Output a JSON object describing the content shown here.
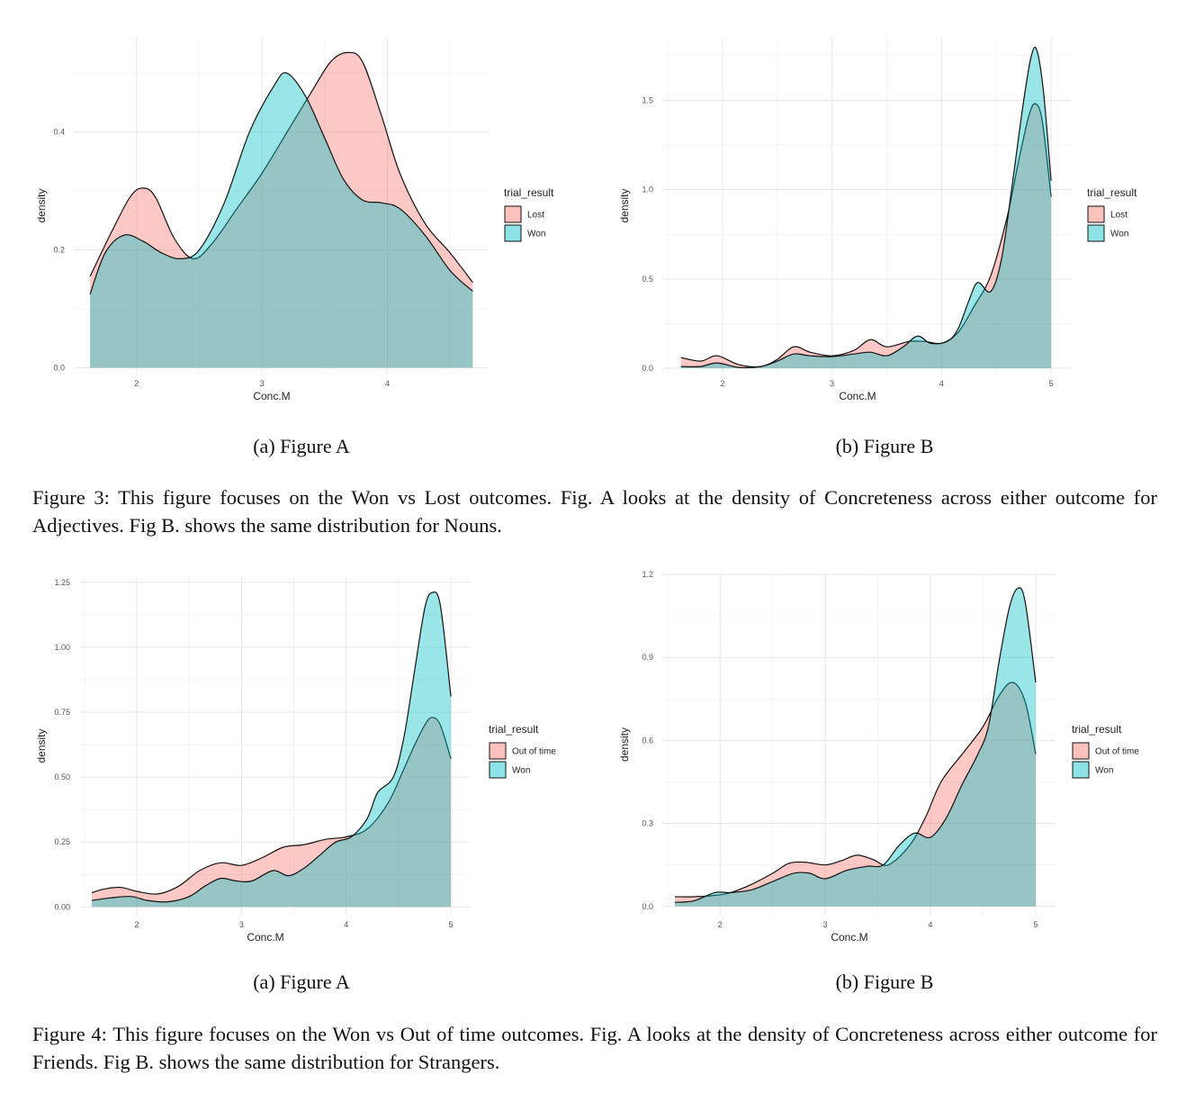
{
  "charts": [
    {
      "chart_data": {
        "type": "area",
        "xlabel": "Conc.M",
        "ylabel": "density",
        "legend_title": "trial_result",
        "legend_position": "right",
        "grid": true,
        "xlim": [
          1.5,
          4.8
        ],
        "ylim": [
          -0.01,
          0.56
        ],
        "xticks": [
          2,
          3,
          4
        ],
        "xtick_labels": [
          "2",
          "3",
          "4"
        ],
        "yticks": [
          0,
          0.2,
          0.4
        ],
        "ytick_labels": [
          "0.0",
          "0.2",
          "0.4"
        ],
        "series": [
          {
            "name": "Lost",
            "color": "#F8766D",
            "x": [
              1.63,
              1.8,
              1.95,
              2.05,
              2.15,
              2.3,
              2.45,
              2.6,
              2.8,
              3.0,
              3.2,
              3.4,
              3.55,
              3.68,
              3.8,
              3.95,
              4.1,
              4.3,
              4.5,
              4.68
            ],
            "y": [
              0.155,
              0.23,
              0.29,
              0.305,
              0.29,
              0.22,
              0.185,
              0.21,
              0.27,
              0.33,
              0.4,
              0.47,
              0.52,
              0.535,
              0.52,
              0.43,
              0.33,
              0.245,
              0.195,
              0.145
            ]
          },
          {
            "name": "Won",
            "color": "#00BFC4",
            "x": [
              1.63,
              1.75,
              1.9,
              2.05,
              2.2,
              2.35,
              2.5,
              2.7,
              2.9,
              3.1,
              3.2,
              3.35,
              3.5,
              3.65,
              3.8,
              3.95,
              4.1,
              4.3,
              4.5,
              4.68
            ],
            "y": [
              0.125,
              0.195,
              0.225,
              0.215,
              0.195,
              0.185,
              0.2,
              0.28,
              0.4,
              0.48,
              0.5,
              0.46,
              0.39,
              0.32,
              0.285,
              0.28,
              0.27,
              0.225,
              0.165,
              0.13
            ]
          }
        ]
      },
      "subcaption": "(a) Figure A"
    },
    {
      "chart_data": {
        "type": "area",
        "xlabel": "Conc.M",
        "ylabel": "density",
        "legend_title": "trial_result",
        "legend_position": "right",
        "grid": true,
        "xlim": [
          1.45,
          5.18
        ],
        "ylim": [
          -0.03,
          1.85
        ],
        "xticks": [
          2,
          3,
          4,
          5
        ],
        "xtick_labels": [
          "2",
          "3",
          "4",
          "5"
        ],
        "yticks": [
          0,
          0.5,
          1.0,
          1.5
        ],
        "ytick_labels": [
          "0.0",
          "0.5",
          "1.0",
          "1.5"
        ],
        "series": [
          {
            "name": "Lost",
            "color": "#F8766D",
            "x": [
              1.62,
              1.8,
              1.95,
              2.15,
              2.35,
              2.5,
              2.65,
              2.8,
              3.0,
              3.2,
              3.35,
              3.5,
              3.7,
              3.85,
              4.0,
              4.15,
              4.3,
              4.45,
              4.6,
              4.7,
              4.8,
              4.86,
              4.92,
              5.0
            ],
            "y": [
              0.06,
              0.04,
              0.07,
              0.02,
              0.01,
              0.05,
              0.12,
              0.09,
              0.07,
              0.1,
              0.16,
              0.12,
              0.15,
              0.15,
              0.14,
              0.2,
              0.35,
              0.52,
              0.85,
              1.15,
              1.42,
              1.48,
              1.38,
              0.96
            ]
          },
          {
            "name": "Won",
            "color": "#00BFC4",
            "x": [
              1.62,
              1.8,
              1.95,
              2.15,
              2.35,
              2.5,
              2.65,
              2.8,
              3.0,
              3.2,
              3.35,
              3.5,
              3.65,
              3.78,
              3.9,
              4.05,
              4.15,
              4.25,
              4.33,
              4.45,
              4.55,
              4.65,
              4.75,
              4.82,
              4.87,
              4.93,
              5.0
            ],
            "y": [
              0.01,
              0.01,
              0.03,
              0.005,
              0.01,
              0.04,
              0.08,
              0.07,
              0.065,
              0.08,
              0.09,
              0.07,
              0.12,
              0.18,
              0.14,
              0.15,
              0.22,
              0.38,
              0.48,
              0.43,
              0.62,
              1.05,
              1.5,
              1.75,
              1.78,
              1.55,
              1.05
            ]
          }
        ]
      },
      "subcaption": "(b) Figure B"
    },
    {
      "chart_data": {
        "type": "area",
        "xlabel": "Conc.M",
        "ylabel": "density",
        "legend_title": "trial_result",
        "legend_position": "right",
        "grid": true,
        "xlim": [
          1.45,
          5.18
        ],
        "ylim": [
          -0.03,
          1.27
        ],
        "xticks": [
          2,
          3,
          4,
          5
        ],
        "xtick_labels": [
          "2",
          "3",
          "4",
          "5"
        ],
        "yticks": [
          0,
          0.25,
          0.5,
          0.75,
          1.0,
          1.25
        ],
        "ytick_labels": [
          "0.00",
          "0.25",
          "0.50",
          "0.75",
          "1.00",
          "1.25"
        ],
        "series": [
          {
            "name": "Out of time",
            "color": "#F8766D",
            "x": [
              1.57,
              1.7,
              1.85,
              2.0,
              2.2,
              2.4,
              2.6,
              2.8,
              3.0,
              3.2,
              3.4,
              3.6,
              3.8,
              4.0,
              4.2,
              4.4,
              4.55,
              4.65,
              4.75,
              4.82,
              4.9,
              5.0
            ],
            "y": [
              0.055,
              0.07,
              0.075,
              0.06,
              0.05,
              0.08,
              0.14,
              0.17,
              0.16,
              0.19,
              0.23,
              0.24,
              0.26,
              0.27,
              0.3,
              0.4,
              0.53,
              0.62,
              0.7,
              0.73,
              0.7,
              0.57
            ]
          },
          {
            "name": "Won",
            "color": "#00BFC4",
            "x": [
              1.57,
              1.75,
              1.95,
              2.1,
              2.3,
              2.5,
              2.65,
              2.8,
              2.95,
              3.1,
              3.3,
              3.45,
              3.6,
              3.75,
              3.9,
              4.05,
              4.2,
              4.3,
              4.45,
              4.55,
              4.65,
              4.75,
              4.82,
              4.9,
              5.0
            ],
            "y": [
              0.025,
              0.035,
              0.04,
              0.025,
              0.02,
              0.04,
              0.08,
              0.11,
              0.1,
              0.1,
              0.14,
              0.12,
              0.15,
              0.2,
              0.25,
              0.27,
              0.34,
              0.44,
              0.5,
              0.65,
              0.9,
              1.15,
              1.21,
              1.16,
              0.81
            ]
          }
        ]
      },
      "subcaption": "(a) Figure A"
    },
    {
      "chart_data": {
        "type": "area",
        "xlabel": "Conc.M",
        "ylabel": "density",
        "legend_title": "trial_result",
        "legend_position": "right",
        "grid": true,
        "xlim": [
          1.45,
          5.18
        ],
        "ylim": [
          -0.03,
          1.2
        ],
        "xticks": [
          2,
          3,
          4,
          5
        ],
        "xtick_labels": [
          "2",
          "3",
          "4",
          "5"
        ],
        "yticks": [
          0,
          0.3,
          0.6,
          0.9,
          1.2
        ],
        "ytick_labels": [
          "0.0",
          "0.3",
          "0.6",
          "0.9",
          "1.2"
        ],
        "series": [
          {
            "name": "Out of time",
            "color": "#F8766D",
            "x": [
              1.57,
              1.75,
              1.95,
              2.1,
              2.3,
              2.5,
              2.65,
              2.8,
              3.0,
              3.15,
              3.3,
              3.45,
              3.6,
              3.8,
              3.95,
              4.1,
              4.3,
              4.5,
              4.65,
              4.78,
              4.9,
              5.0
            ],
            "y": [
              0.035,
              0.035,
              0.04,
              0.05,
              0.08,
              0.12,
              0.155,
              0.16,
              0.15,
              0.165,
              0.185,
              0.17,
              0.15,
              0.22,
              0.32,
              0.45,
              0.55,
              0.65,
              0.76,
              0.81,
              0.74,
              0.55
            ]
          },
          {
            "name": "Won",
            "color": "#00BFC4",
            "x": [
              1.57,
              1.75,
              1.95,
              2.1,
              2.3,
              2.5,
              2.7,
              2.85,
              3.0,
              3.2,
              3.4,
              3.55,
              3.7,
              3.85,
              4.0,
              4.15,
              4.3,
              4.45,
              4.55,
              4.65,
              4.75,
              4.83,
              4.9,
              5.0
            ],
            "y": [
              0.015,
              0.02,
              0.05,
              0.05,
              0.06,
              0.09,
              0.12,
              0.12,
              0.1,
              0.13,
              0.145,
              0.15,
              0.22,
              0.265,
              0.25,
              0.32,
              0.44,
              0.55,
              0.65,
              0.88,
              1.08,
              1.15,
              1.1,
              0.81
            ]
          }
        ]
      },
      "subcaption": "(b) Figure B"
    }
  ],
  "captions": [
    "Figure 3: This figure focuses on the Won vs Lost outcomes. Fig. A looks at the density of Concreteness across either outcome for Adjectives. Fig B. shows the same distribution for Nouns.",
    "Figure 4: This figure focuses on the Won vs Out of time outcomes. Fig. A looks at the density of Concreteness across either outcome for Friends. Fig B. shows the same distribution for Strangers."
  ]
}
